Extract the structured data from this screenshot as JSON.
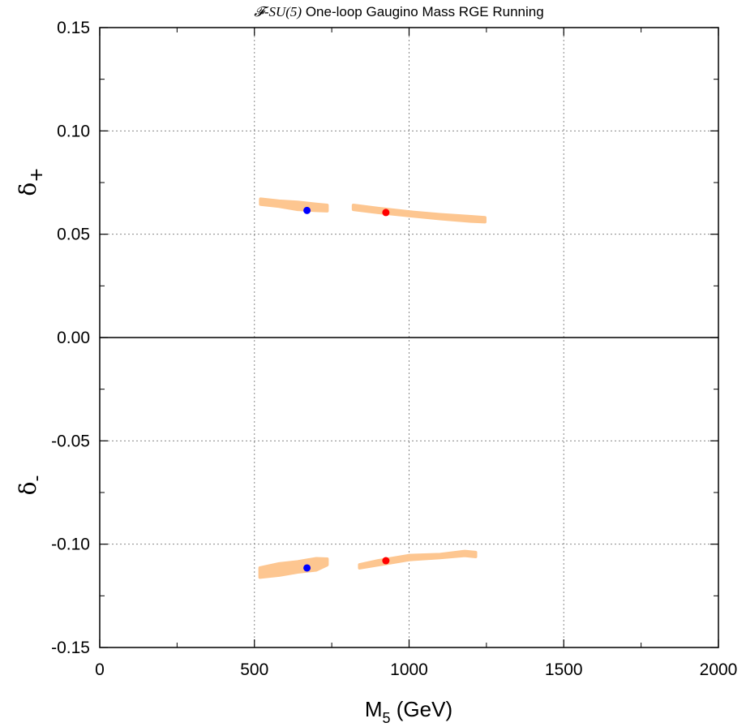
{
  "chart_data": {
    "type": "scatter",
    "title": {
      "italic_part": "𝓕-SU(5)",
      "rest": " One-loop Gaugino Mass RGE Running"
    },
    "xlabel": {
      "main": "M",
      "sub": "5",
      "unit": " (GeV)"
    },
    "ylabels": [
      {
        "main": "δ",
        "sub": "+"
      },
      {
        "main": "δ",
        "sub": "-"
      }
    ],
    "xlim": [
      0,
      2000
    ],
    "ylim": [
      -0.15,
      0.15
    ],
    "xticks": [
      0,
      500,
      1000,
      1500,
      2000
    ],
    "xtick_labels": [
      "0",
      "500",
      "1000",
      "1500",
      "2000"
    ],
    "yticks": [
      0.15,
      0.1,
      0.05,
      0.0,
      -0.05,
      -0.1,
      -0.15
    ],
    "ytick_labels": [
      "0.15",
      "0.10",
      "0.05",
      "0.00",
      "-0.05",
      "-0.10",
      "-0.15"
    ],
    "grid": "dotted",
    "band_color": "#fdc690",
    "bands": [
      {
        "x": [
          520,
          580,
          640,
          700,
          735
        ],
        "y_high": [
          0.067,
          0.066,
          0.0655,
          0.0645,
          0.064
        ],
        "y_low": [
          0.0645,
          0.0635,
          0.062,
          0.0615,
          0.0613
        ]
      },
      {
        "x": [
          820,
          900,
          1000,
          1100,
          1200,
          1245
        ],
        "y_high": [
          0.064,
          0.0625,
          0.0608,
          0.0595,
          0.0585,
          0.058
        ],
        "y_low": [
          0.062,
          0.0605,
          0.059,
          0.0575,
          0.0563,
          0.056
        ]
      },
      {
        "x": [
          518,
          580,
          640,
          700,
          735
        ],
        "y_high": [
          -0.1115,
          -0.1095,
          -0.1085,
          -0.107,
          -0.1072
        ],
        "y_low": [
          -0.116,
          -0.115,
          -0.1135,
          -0.1125,
          -0.11
        ]
      },
      {
        "x": [
          840,
          900,
          1000,
          1100,
          1180,
          1215
        ],
        "y_high": [
          -0.11,
          -0.108,
          -0.1055,
          -0.105,
          -0.1035,
          -0.104
        ],
        "y_low": [
          -0.1115,
          -0.11,
          -0.1075,
          -0.1065,
          -0.1055,
          -0.106
        ]
      }
    ],
    "points": [
      {
        "x": 670,
        "y": 0.0615,
        "color": "#0000ff"
      },
      {
        "x": 925,
        "y": 0.0605,
        "color": "#ff0000"
      },
      {
        "x": 670,
        "y": -0.1115,
        "color": "#0000ff"
      },
      {
        "x": 925,
        "y": -0.108,
        "color": "#ff0000"
      }
    ],
    "hline": 0.0
  }
}
